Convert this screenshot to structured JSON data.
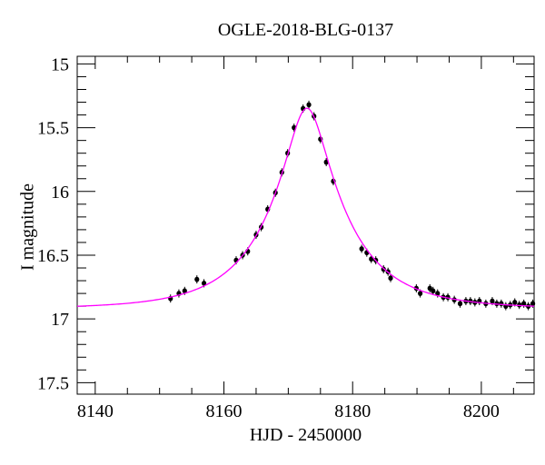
{
  "figure": {
    "background_color": "#FFFFFF",
    "text_color": "#000000"
  },
  "chart_data": {
    "type": "scatter",
    "title": "OGLE-2018-BLG-0137",
    "xlabel": "HJD - 2450000",
    "ylabel": "I magnitude",
    "grid": false,
    "frame": "box-with-inward-ticks-all-sides",
    "x_axis": {
      "lim": [
        8137.2,
        8208.2
      ],
      "major_ticks": [
        8140,
        8160,
        8180,
        8200
      ],
      "major_tick_labels": [
        "8140",
        "8160",
        "8180",
        "8200"
      ],
      "minor_tick_step": 5
    },
    "y_axis": {
      "lim": [
        14.94,
        17.59
      ],
      "magnitude_scale_inverted": true,
      "major_ticks": [
        15,
        15.5,
        16,
        16.5,
        17,
        17.5
      ],
      "major_tick_labels": [
        "15",
        "15.5",
        "16",
        "16.5",
        "17",
        "17.5"
      ],
      "minor_tick_step": 0.1
    },
    "series": [
      {
        "name": "ogle-i-band-photometry",
        "kind": "scatter",
        "marker_color": "#000000",
        "points": [
          [
            8151.7,
            16.84
          ],
          [
            8153.0,
            16.8
          ],
          [
            8153.9,
            16.78
          ],
          [
            8155.8,
            16.69
          ],
          [
            8156.9,
            16.72
          ],
          [
            8161.9,
            16.54
          ],
          [
            8162.9,
            16.5
          ],
          [
            8163.7,
            16.47
          ],
          [
            8165.0,
            16.34
          ],
          [
            8165.8,
            16.28
          ],
          [
            8166.8,
            16.14
          ],
          [
            8168.0,
            16.01
          ],
          [
            8169.0,
            15.85
          ],
          [
            8169.9,
            15.7
          ],
          [
            8170.9,
            15.5
          ],
          [
            8172.3,
            15.35
          ],
          [
            8173.2,
            15.32
          ],
          [
            8174.0,
            15.41
          ],
          [
            8175.0,
            15.59
          ],
          [
            8175.9,
            15.77
          ],
          [
            8177.0,
            15.92
          ],
          [
            8181.4,
            16.45
          ],
          [
            8182.2,
            16.48
          ],
          [
            8182.9,
            16.53
          ],
          [
            8183.6,
            16.54
          ],
          [
            8184.8,
            16.61
          ],
          [
            8185.5,
            16.63
          ],
          [
            8185.9,
            16.68
          ],
          [
            8189.9,
            16.76
          ],
          [
            8190.5,
            16.8
          ],
          [
            8192.0,
            16.76
          ],
          [
            8192.5,
            16.78
          ],
          [
            8193.2,
            16.8
          ],
          [
            8194.1,
            16.83
          ],
          [
            8194.8,
            16.83
          ],
          [
            8195.8,
            16.85
          ],
          [
            8196.7,
            16.88
          ],
          [
            8197.6,
            16.86
          ],
          [
            8198.3,
            16.86
          ],
          [
            8199.0,
            16.87
          ],
          [
            8199.7,
            16.86
          ],
          [
            8200.7,
            16.88
          ],
          [
            8201.7,
            16.86
          ],
          [
            8202.4,
            16.88
          ],
          [
            8203.1,
            16.88
          ],
          [
            8203.8,
            16.9
          ],
          [
            8204.5,
            16.89
          ],
          [
            8205.2,
            16.87
          ],
          [
            8205.9,
            16.89
          ],
          [
            8206.6,
            16.88
          ],
          [
            8207.3,
            16.9
          ],
          [
            8208.0,
            16.88
          ]
        ]
      },
      {
        "name": "microlensing-model",
        "kind": "line",
        "line_color": "#FF00FF",
        "paczynski_params": {
          "t0": 8172.9,
          "tE": 12.2,
          "u0": 0.24,
          "I_baseline": 16.92
        }
      }
    ]
  }
}
